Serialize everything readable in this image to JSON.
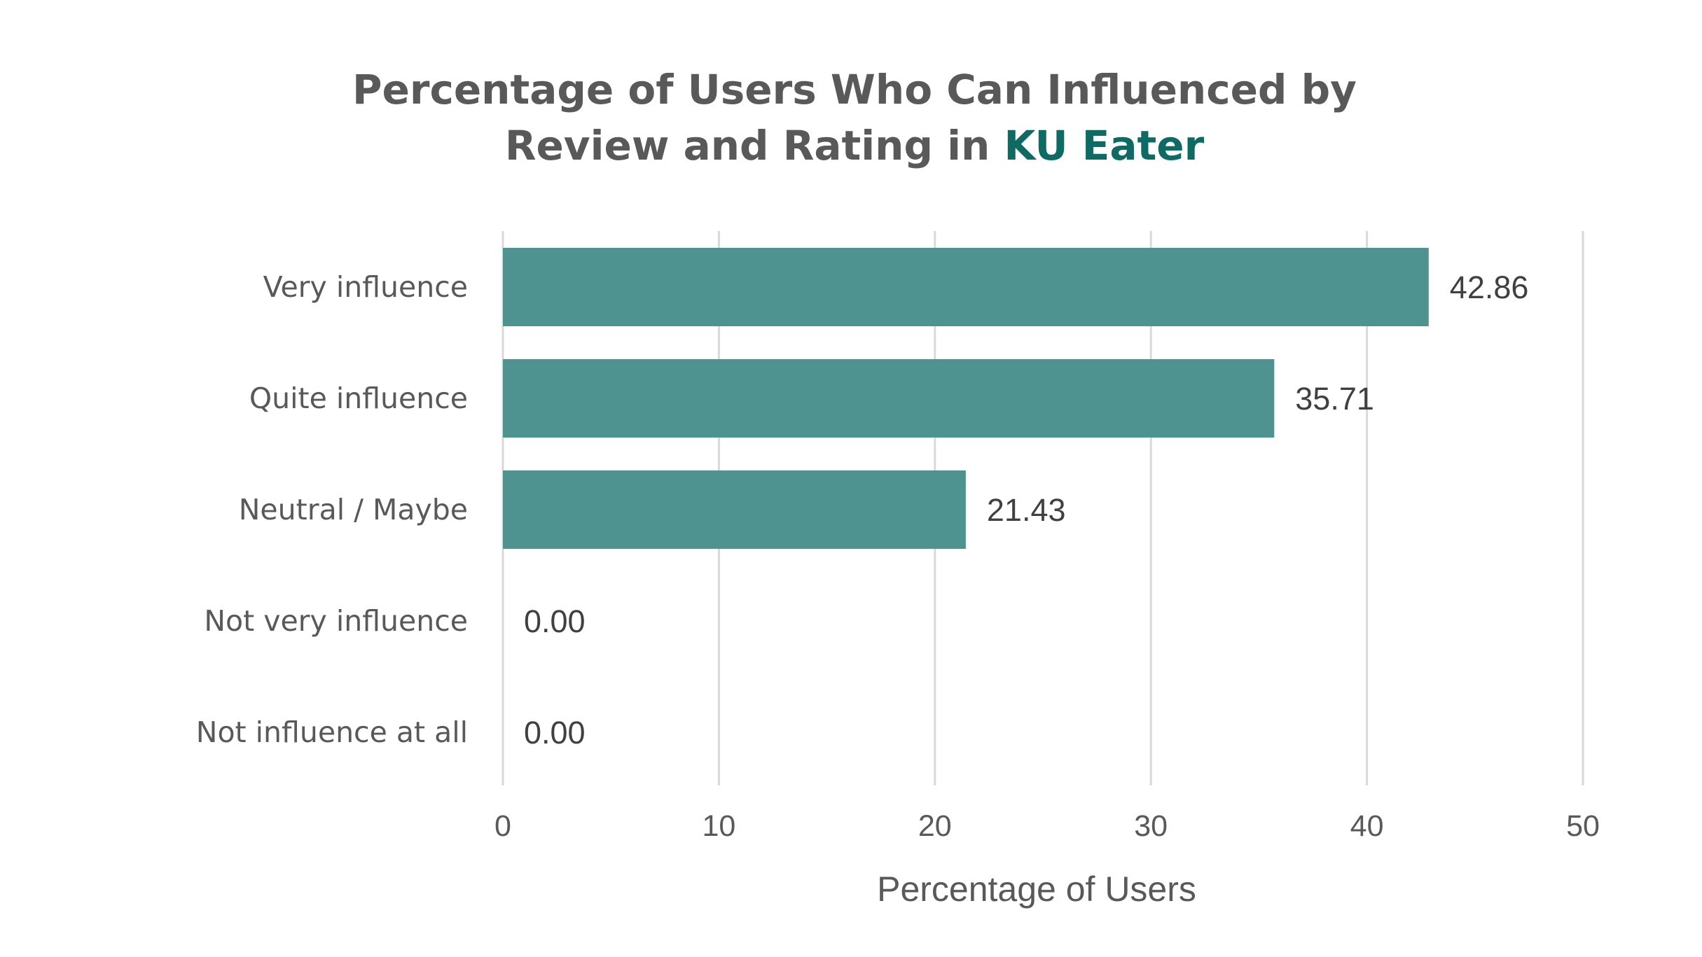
{
  "chart_data": {
    "type": "bar",
    "orientation": "horizontal",
    "title_parts": [
      {
        "text": "Percentage of Users Who Can Influenced by",
        "line": 0,
        "accent": false
      },
      {
        "text": "Review and Rating in ",
        "line": 1,
        "accent": false
      },
      {
        "text": "KU Eater",
        "line": 1,
        "accent": true
      }
    ],
    "categories": [
      "Very influence",
      "Quite influence",
      "Neutral / Maybe",
      "Not very influence",
      "Not influence at all"
    ],
    "values": [
      42.86,
      35.71,
      21.43,
      0.0,
      0.0
    ],
    "value_labels": [
      "42.86",
      "35.71",
      "21.43",
      "0.00",
      "0.00"
    ],
    "xlabel": "Percentage of Users",
    "ylabel": "",
    "xlim": [
      0,
      50
    ],
    "xticks": [
      0,
      10,
      20,
      30,
      40,
      50
    ],
    "grid": "vertical",
    "legend": "none",
    "colors": {
      "bar": "#4e9390",
      "title_accent": "#0e6b64",
      "text": "#595959",
      "gridline": "#d9d9d9"
    }
  }
}
